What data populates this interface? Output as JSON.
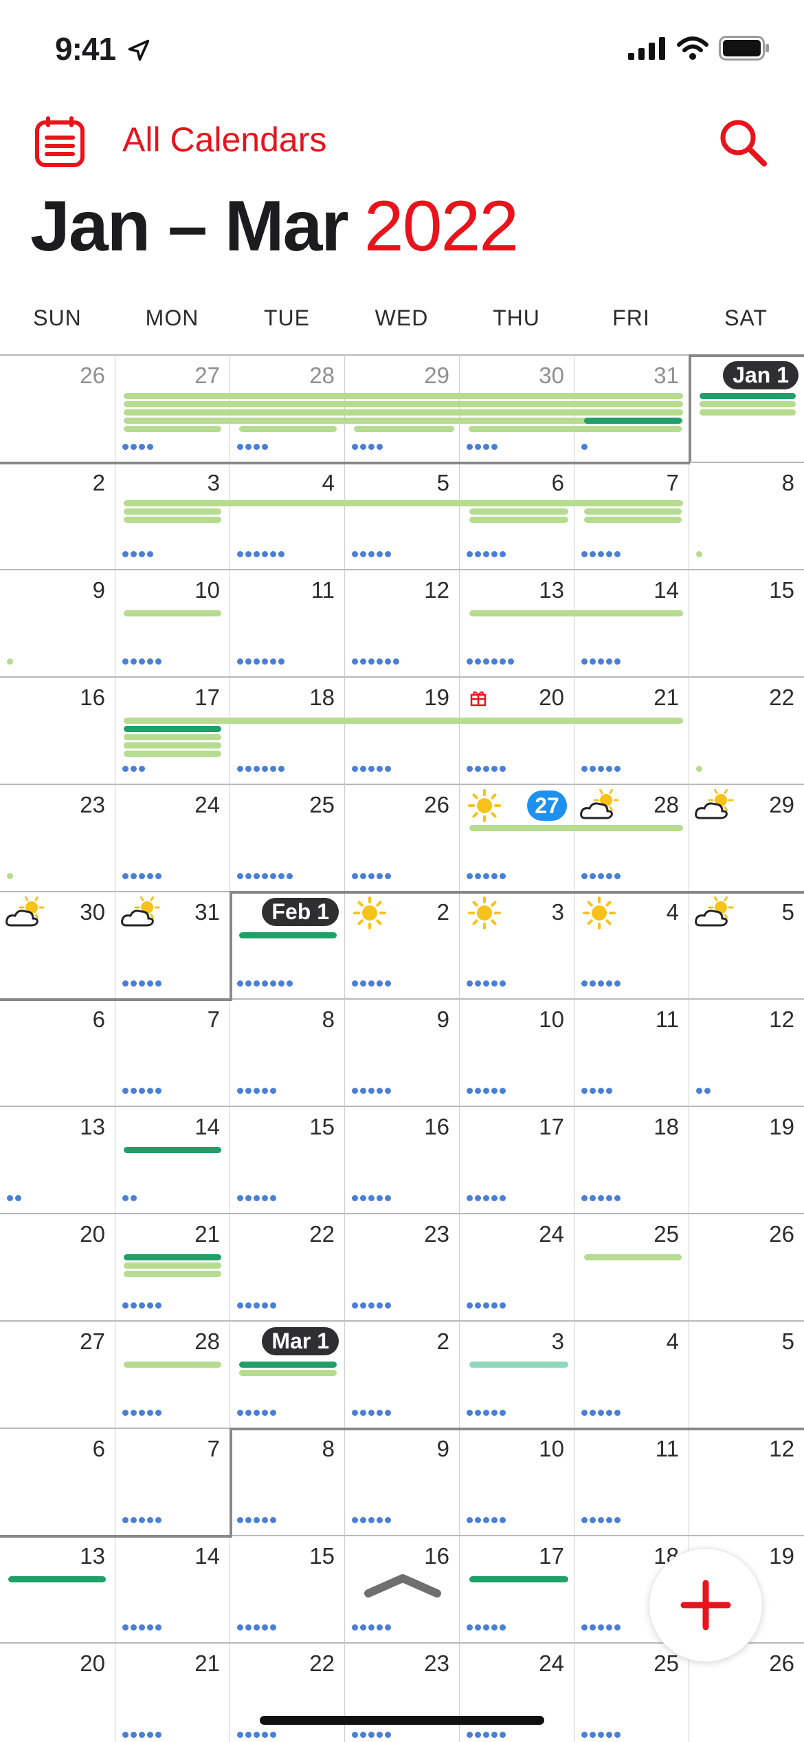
{
  "status_bar": {
    "time": "9:41"
  },
  "header": {
    "calendars_label": "All Calendars",
    "title_range": "Jan – Mar",
    "title_year": "2022"
  },
  "weekdays": [
    "SUN",
    "MON",
    "TUE",
    "WED",
    "THU",
    "FRI",
    "SAT"
  ],
  "colors": {
    "accent": "#e8131b",
    "today": "#1e90f0",
    "event_light_green": "#b5dc8f",
    "event_dark_green": "#1fa067",
    "event_teal": "#8ed9bd",
    "dot_blue": "#4a7fd6"
  },
  "weeks": [
    {
      "days": [
        {
          "n": "26",
          "prev": true,
          "dots": 0
        },
        {
          "n": "27",
          "prev": true,
          "dots": 4
        },
        {
          "n": "28",
          "prev": true,
          "dots": 4
        },
        {
          "n": "29",
          "prev": true,
          "dots": 4
        },
        {
          "n": "30",
          "prev": true,
          "dots": 4
        },
        {
          "n": "31",
          "prev": true,
          "dots": 1
        },
        {
          "n": "Jan 1",
          "pill": true,
          "dots": 0
        }
      ]
    },
    {
      "days": [
        {
          "n": "2",
          "dots": 0
        },
        {
          "n": "3",
          "dots": 4
        },
        {
          "n": "4",
          "dots": 6
        },
        {
          "n": "5",
          "dots": 5
        },
        {
          "n": "6",
          "dots": 5
        },
        {
          "n": "7",
          "dots": 5
        },
        {
          "n": "8",
          "dots": 1
        }
      ]
    },
    {
      "days": [
        {
          "n": "9",
          "dots": 1
        },
        {
          "n": "10",
          "dots": 5
        },
        {
          "n": "11",
          "dots": 6
        },
        {
          "n": "12",
          "dots": 6
        },
        {
          "n": "13",
          "dots": 6
        },
        {
          "n": "14",
          "dots": 5
        },
        {
          "n": "15",
          "dots": 0
        }
      ]
    },
    {
      "days": [
        {
          "n": "16",
          "dots": 0
        },
        {
          "n": "17",
          "dots": 3
        },
        {
          "n": "18",
          "dots": 6
        },
        {
          "n": "19",
          "dots": 5
        },
        {
          "n": "20",
          "dots": 5,
          "gift": true
        },
        {
          "n": "21",
          "dots": 5
        },
        {
          "n": "22",
          "dots": 1
        }
      ]
    },
    {
      "days": [
        {
          "n": "23",
          "dots": 1
        },
        {
          "n": "24",
          "dots": 5
        },
        {
          "n": "25",
          "dots": 7
        },
        {
          "n": "26",
          "dots": 5
        },
        {
          "n": "27",
          "dots": 5,
          "today": true,
          "weather": "sun"
        },
        {
          "n": "28",
          "dots": 5,
          "weather": "cloud"
        },
        {
          "n": "29",
          "dots": 0,
          "weather": "cloud"
        }
      ]
    },
    {
      "days": [
        {
          "n": "30",
          "dots": 0,
          "weather": "cloud"
        },
        {
          "n": "31",
          "dots": 5,
          "weather": "cloud"
        },
        {
          "n": "Feb 1",
          "pill": true,
          "dots": 7
        },
        {
          "n": "2",
          "dots": 5,
          "weather": "sun"
        },
        {
          "n": "3",
          "dots": 5,
          "weather": "sun"
        },
        {
          "n": "4",
          "dots": 5,
          "weather": "sun"
        },
        {
          "n": "5",
          "dots": 0,
          "weather": "cloud"
        }
      ]
    },
    {
      "days": [
        {
          "n": "6",
          "dots": 0
        },
        {
          "n": "7",
          "dots": 5
        },
        {
          "n": "8",
          "dots": 5
        },
        {
          "n": "9",
          "dots": 5
        },
        {
          "n": "10",
          "dots": 5
        },
        {
          "n": "11",
          "dots": 4
        },
        {
          "n": "12",
          "dots": 2
        }
      ]
    },
    {
      "days": [
        {
          "n": "13",
          "dots": 2
        },
        {
          "n": "14",
          "dots": 2
        },
        {
          "n": "15",
          "dots": 5
        },
        {
          "n": "16",
          "dots": 5
        },
        {
          "n": "17",
          "dots": 5
        },
        {
          "n": "18",
          "dots": 5
        },
        {
          "n": "19",
          "dots": 0
        }
      ]
    },
    {
      "days": [
        {
          "n": "20",
          "dots": 0
        },
        {
          "n": "21",
          "dots": 5
        },
        {
          "n": "22",
          "dots": 5
        },
        {
          "n": "23",
          "dots": 5
        },
        {
          "n": "24",
          "dots": 5
        },
        {
          "n": "25",
          "dots": 0
        },
        {
          "n": "26",
          "dots": 0
        }
      ]
    },
    {
      "days": [
        {
          "n": "27",
          "dots": 0
        },
        {
          "n": "28",
          "dots": 5
        },
        {
          "n": "Mar 1",
          "pill": true,
          "dots": 5
        },
        {
          "n": "2",
          "dots": 5
        },
        {
          "n": "3",
          "dots": 5
        },
        {
          "n": "4",
          "dots": 5
        },
        {
          "n": "5",
          "dots": 0
        }
      ]
    },
    {
      "days": [
        {
          "n": "6",
          "dots": 0
        },
        {
          "n": "7",
          "dots": 5
        },
        {
          "n": "8",
          "dots": 5
        },
        {
          "n": "9",
          "dots": 5
        },
        {
          "n": "10",
          "dots": 5
        },
        {
          "n": "11",
          "dots": 5
        },
        {
          "n": "12",
          "dots": 0
        }
      ]
    },
    {
      "days": [
        {
          "n": "13",
          "dots": 0
        },
        {
          "n": "14",
          "dots": 5
        },
        {
          "n": "15",
          "dots": 5
        },
        {
          "n": "16",
          "dots": 5
        },
        {
          "n": "17",
          "dots": 5
        },
        {
          "n": "18",
          "dots": 5
        },
        {
          "n": "19",
          "dots": 0
        }
      ]
    },
    {
      "days": [
        {
          "n": "20",
          "dots": 0
        },
        {
          "n": "21",
          "dots": 5
        },
        {
          "n": "22",
          "dots": 5
        },
        {
          "n": "23",
          "dots": 5
        },
        {
          "n": "24",
          "dots": 5
        },
        {
          "n": "25",
          "dots": 5
        },
        {
          "n": "26",
          "dots": 0
        }
      ]
    }
  ]
}
